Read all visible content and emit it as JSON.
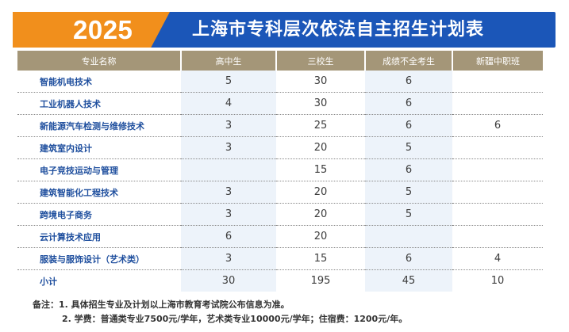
{
  "header": {
    "year": "2025",
    "title": "上海市专科层次依法自主招生计划表"
  },
  "table": {
    "columns": [
      "专业名称",
      "高中生",
      "三校生",
      "成绩不全考生",
      "新疆中职班"
    ],
    "rows": [
      {
        "major": "智能机电技术",
        "high_school": "5",
        "three_schools": "30",
        "incomplete": "6",
        "xinjiang": ""
      },
      {
        "major": "工业机器人技术",
        "high_school": "4",
        "three_schools": "30",
        "incomplete": "6",
        "xinjiang": ""
      },
      {
        "major": "新能源汽车检测与维修技术",
        "high_school": "3",
        "three_schools": "25",
        "incomplete": "6",
        "xinjiang": "6"
      },
      {
        "major": "建筑室内设计",
        "high_school": "3",
        "three_schools": "20",
        "incomplete": "5",
        "xinjiang": ""
      },
      {
        "major": "电子竞技运动与管理",
        "high_school": "",
        "three_schools": "15",
        "incomplete": "6",
        "xinjiang": ""
      },
      {
        "major": "建筑智能化工程技术",
        "high_school": "3",
        "three_schools": "20",
        "incomplete": "5",
        "xinjiang": ""
      },
      {
        "major": "跨境电子商务",
        "high_school": "3",
        "three_schools": "20",
        "incomplete": "5",
        "xinjiang": ""
      },
      {
        "major": "云计算技术应用",
        "high_school": "6",
        "three_schools": "20",
        "incomplete": "",
        "xinjiang": ""
      },
      {
        "major": "服装与服饰设计（艺术类）",
        "high_school": "3",
        "three_schools": "15",
        "incomplete": "6",
        "xinjiang": "4"
      }
    ],
    "total": {
      "major": "小计",
      "high_school": "30",
      "three_schools": "195",
      "incomplete": "45",
      "xinjiang": "10"
    }
  },
  "notes": {
    "line1": "备注：1. 具体招生专业及计划以上海市教育考试院公布信息为准。",
    "line2": "2. 学费：普通类专业7500元/学年，艺术类专业10000元/学年；住宿费：1200元/年。"
  },
  "colors": {
    "header_blue": "#1b56b8",
    "header_orange": "#f18f1c",
    "column_header_bg": "#a49678",
    "major_text": "#1f4f9e",
    "shade": "#edf3fa"
  }
}
